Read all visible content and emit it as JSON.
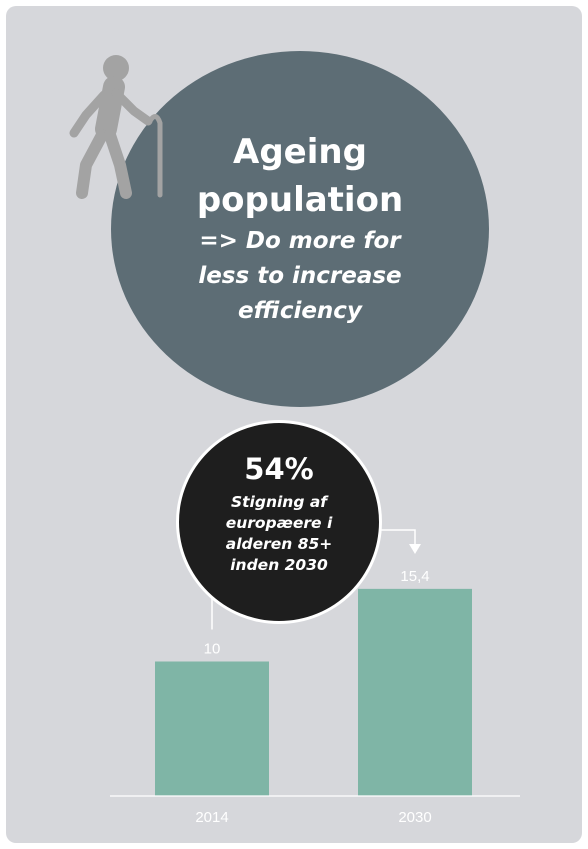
{
  "headline": {
    "title_lines": [
      "Ageing",
      "population"
    ],
    "subtitle_lines": [
      "=> Do more for",
      "less to increase",
      "efficiency"
    ],
    "circle_color": "#5d6d75",
    "icon": "elderly-person-with-cane-icon"
  },
  "callout": {
    "value": "54%",
    "lines": [
      "Stigning af",
      "europæere i",
      "alderen 85+",
      "inden 2030"
    ],
    "circle_color": "#1e1e1e"
  },
  "chart_data": {
    "type": "bar",
    "categories": [
      "2014",
      "2030"
    ],
    "values": [
      10,
      15.4
    ],
    "value_labels": [
      "10",
      "15,4"
    ],
    "bar_color": "#7fb5a6",
    "grid": false,
    "ylim": [
      0,
      20
    ]
  },
  "colors": {
    "background": "#d6d7db",
    "bar": "#7fb5a6",
    "icon": "#a3a3a3",
    "text_light": "#ffffff"
  }
}
